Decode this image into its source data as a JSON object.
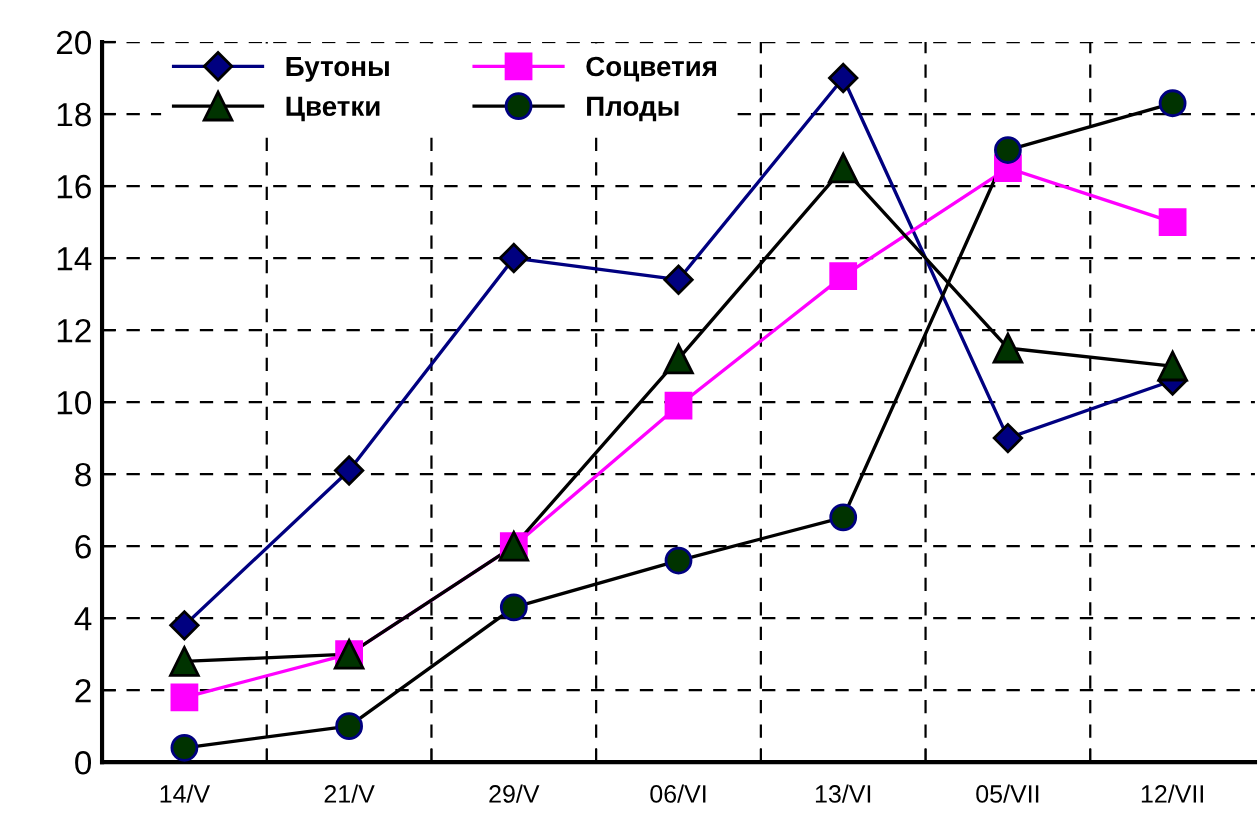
{
  "chart_data": {
    "type": "line",
    "categories": [
      "14/V",
      "21/V",
      "29/V",
      "06/VI",
      "13/VI",
      "05/VII",
      "12/VII"
    ],
    "series": [
      {
        "name": "Бутоны",
        "color": "#000080",
        "marker": "diamond",
        "values": [
          3.8,
          8.1,
          14.0,
          13.4,
          19.0,
          9.0,
          10.6
        ]
      },
      {
        "name": "Соцветия",
        "color": "#ff00ff",
        "marker": "square",
        "values": [
          1.8,
          3.0,
          6.0,
          9.9,
          13.5,
          16.5,
          15.0
        ]
      },
      {
        "name": "Цветки",
        "color": "#000000",
        "marker": "triangle",
        "colors": [
          "#003300",
          "#003300",
          "#003300",
          "#003300",
          "#003300",
          "#003300",
          "#003300"
        ],
        "values": [
          2.8,
          3.0,
          6.0,
          11.2,
          16.5,
          11.5,
          11.0
        ]
      },
      {
        "name": "Плоды",
        "color": "#000000",
        "marker": "circle",
        "colors": [
          "#003300",
          "#003300",
          "#003300",
          "#003300",
          "#003300",
          "#003300",
          "#003300"
        ],
        "values": [
          0.4,
          1.0,
          4.3,
          5.6,
          6.8,
          17.0,
          18.3
        ]
      }
    ],
    "ylim": [
      0,
      20
    ],
    "yticks": [
      0,
      2,
      4,
      6,
      8,
      10,
      12,
      14,
      16,
      18,
      20
    ],
    "grid": true,
    "legend": "top left",
    "line_style": "solid"
  }
}
